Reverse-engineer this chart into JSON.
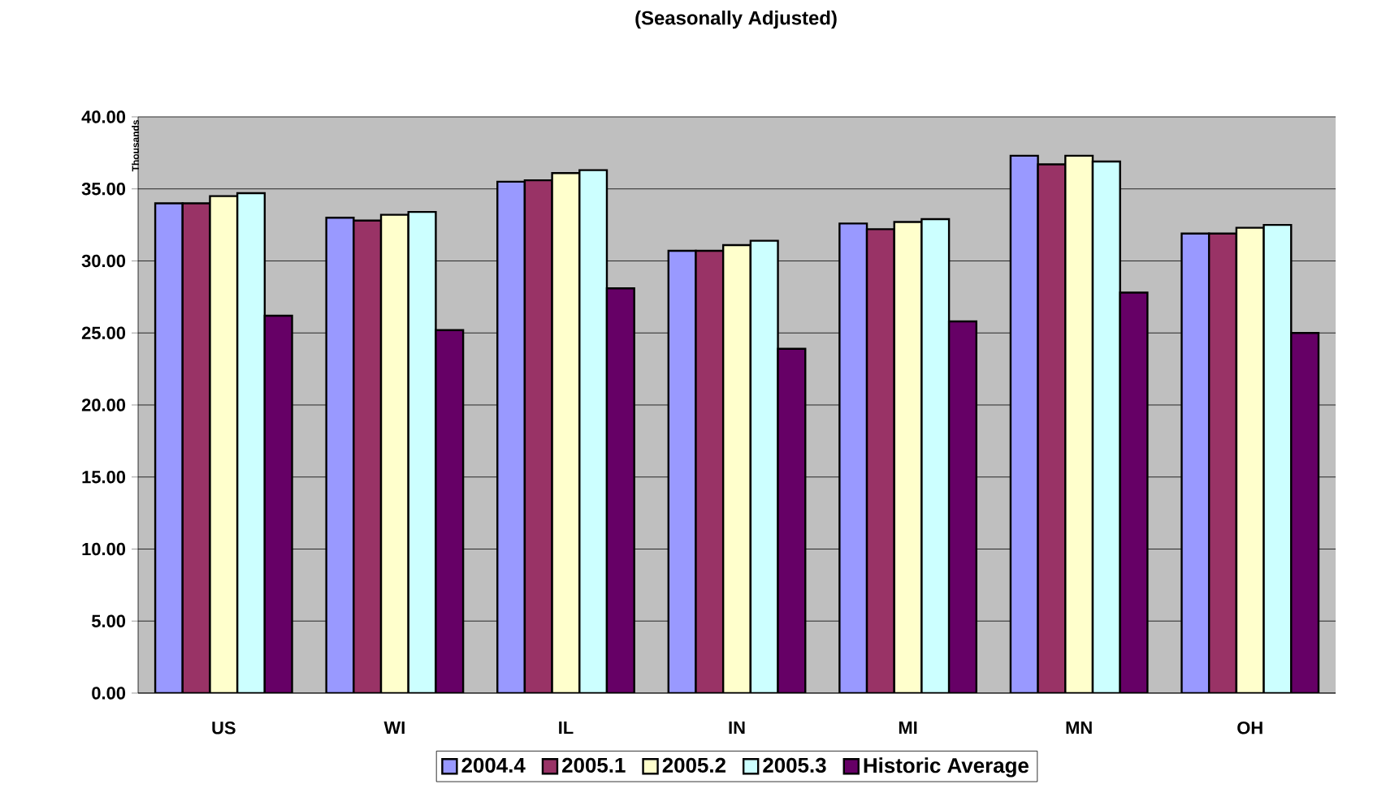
{
  "chart_data": {
    "type": "bar",
    "title": "(Seasonally Adjusted)",
    "ylabel": "Thousands",
    "categories": [
      "US",
      "WI",
      "IL",
      "IN",
      "MI",
      "MN",
      "OH"
    ],
    "series": [
      {
        "name": "2004.4",
        "color": "#9999ff",
        "values": [
          34.0,
          33.0,
          35.5,
          30.7,
          32.6,
          37.3,
          31.9
        ]
      },
      {
        "name": "2005.1",
        "color": "#993366",
        "values": [
          34.0,
          32.8,
          35.6,
          30.7,
          32.2,
          36.7,
          31.9
        ]
      },
      {
        "name": "2005.2",
        "color": "#ffffcc",
        "values": [
          34.5,
          33.2,
          36.1,
          31.1,
          32.7,
          37.3,
          32.3
        ]
      },
      {
        "name": "2005.3",
        "color": "#ccffff",
        "values": [
          34.7,
          33.4,
          36.3,
          31.4,
          32.9,
          36.9,
          32.5
        ]
      },
      {
        "name": "Historic Average",
        "color": "#660066",
        "values": [
          26.2,
          25.2,
          28.1,
          23.9,
          25.8,
          27.8,
          25.0
        ]
      }
    ],
    "ylim": [
      0,
      40
    ],
    "yticks": [
      {
        "value": 0,
        "label": "0.00"
      },
      {
        "value": 5,
        "label": "5.00"
      },
      {
        "value": 10,
        "label": "10.00"
      },
      {
        "value": 15,
        "label": "15.00"
      },
      {
        "value": 20,
        "label": "20.00"
      },
      {
        "value": 25,
        "label": "25.00"
      },
      {
        "value": 30,
        "label": "30.00"
      },
      {
        "value": 35,
        "label": "35.00"
      },
      {
        "value": 40,
        "label": "40.00"
      }
    ],
    "grid": "y",
    "legend": "bottom"
  }
}
